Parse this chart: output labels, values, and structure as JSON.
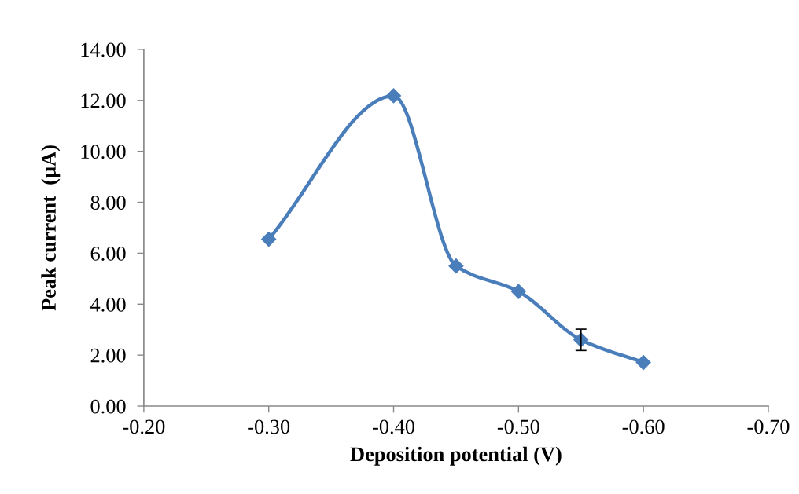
{
  "chart_data": {
    "type": "line",
    "xlabel": "Deposition potential (V)",
    "ylabel": "Peak current  (µA)",
    "x": [
      -0.3,
      -0.4,
      -0.45,
      -0.5,
      -0.55,
      -0.6
    ],
    "series": [
      {
        "color": "#4a7ebb",
        "values": [
          6.55,
          12.18,
          5.5,
          4.5,
          2.6,
          1.71
        ],
        "errors": [
          null,
          null,
          null,
          null,
          0.42,
          null
        ]
      }
    ],
    "xlim": [
      -0.2,
      -0.7
    ],
    "xticks": [
      {
        "value": -0.2,
        "label": "-0.20"
      },
      {
        "value": -0.3,
        "label": "-0.30"
      },
      {
        "value": -0.4,
        "label": "-0.40"
      },
      {
        "value": -0.5,
        "label": "-0.50"
      },
      {
        "value": -0.6,
        "label": "-0.60"
      },
      {
        "value": -0.7,
        "label": "-0.70"
      }
    ],
    "ylim": [
      0,
      14
    ],
    "yticks": [
      {
        "value": 0,
        "label": "0.00"
      },
      {
        "value": 2,
        "label": "2.00"
      },
      {
        "value": 4,
        "label": "4.00"
      },
      {
        "value": 6,
        "label": "6.00"
      },
      {
        "value": 8,
        "label": "8.00"
      },
      {
        "value": 10,
        "label": "10.00"
      },
      {
        "value": 12,
        "label": "12.00"
      },
      {
        "value": 14,
        "label": "14.00"
      }
    ],
    "grid": false,
    "legend": false,
    "marker": "diamond",
    "line_style": "solid"
  }
}
